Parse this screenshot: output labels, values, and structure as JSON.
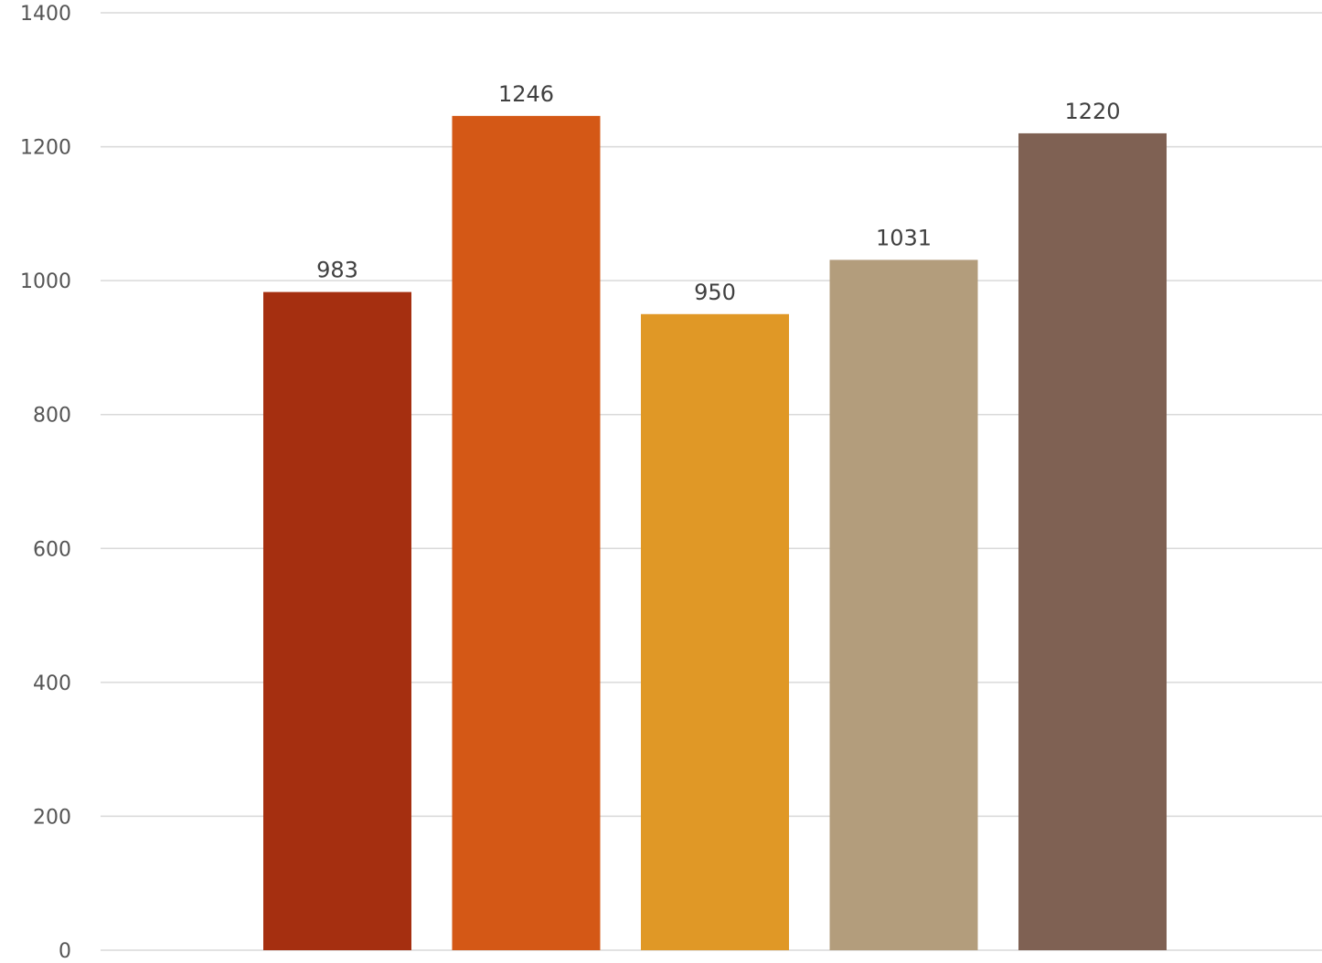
{
  "chart_data": {
    "type": "bar",
    "title": "",
    "xlabel": "",
    "ylabel": "",
    "values": [
      983,
      1246,
      950,
      1031,
      1220
    ],
    "colors": [
      "#a52f10",
      "#d45816",
      "#e09826",
      "#b39d7c",
      "#7f6153"
    ],
    "ylim": [
      0,
      1400
    ],
    "yticks": [
      "0",
      "200",
      "400",
      "600",
      "800",
      "1000",
      "1200",
      "1400"
    ],
    "grid": true,
    "legend": "none",
    "data_labels": [
      "983",
      "1246",
      "950",
      "1031",
      "1220"
    ]
  }
}
